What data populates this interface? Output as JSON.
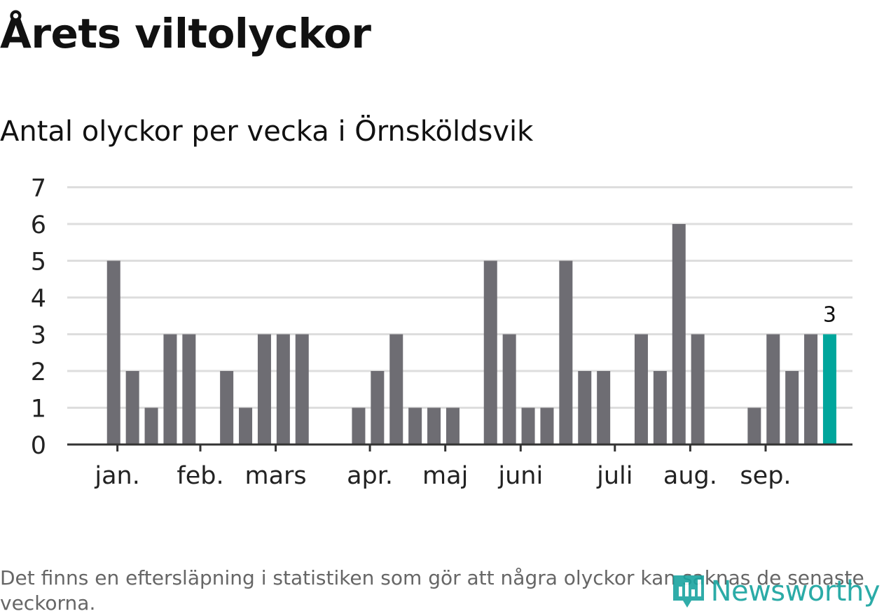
{
  "title": "Årets viltolyckor",
  "subtitle": "Antal olyckor per vecka i Örnsköldsvik",
  "note": "Det finns en eftersläpning i statistiken som gör att några olyckor kan saknas de senaste veckorna.",
  "brand": "Newsworthy",
  "colors": {
    "bar": "#6e6d73",
    "highlight": "#00a69c",
    "grid": "#dddddd",
    "axis": "#333333",
    "brand": "#1aa4a0"
  },
  "chart_data": {
    "type": "bar",
    "title": "Antal olyckor per vecka i Örnsköldsvik",
    "xlabel": "",
    "ylabel": "",
    "ylim": [
      0,
      7
    ],
    "yticks": [
      0,
      1,
      2,
      3,
      4,
      5,
      6,
      7
    ],
    "weeks": [
      1,
      2,
      3,
      4,
      5,
      6,
      7,
      8,
      9,
      10,
      11,
      12,
      13,
      14,
      15,
      16,
      17,
      18,
      19,
      20,
      21,
      22,
      23,
      24,
      25,
      26,
      27,
      28,
      29,
      30,
      31,
      32,
      33,
      34,
      35,
      36,
      37,
      38,
      39,
      40,
      41
    ],
    "values": [
      0,
      0,
      5,
      2,
      1,
      3,
      3,
      0,
      2,
      1,
      3,
      3,
      3,
      0,
      0,
      1,
      2,
      3,
      1,
      1,
      1,
      0,
      5,
      3,
      1,
      1,
      5,
      2,
      2,
      0,
      3,
      2,
      6,
      3,
      0,
      0,
      1,
      3,
      2,
      3,
      3
    ],
    "highlight_index": 40,
    "highlight_label": "3",
    "month_labels": [
      {
        "label": "jan.",
        "week": 3.2
      },
      {
        "label": "feb.",
        "week": 7.6
      },
      {
        "label": "mars",
        "week": 11.6
      },
      {
        "label": "apr.",
        "week": 16.6
      },
      {
        "label": "maj",
        "week": 20.6
      },
      {
        "label": "juni",
        "week": 24.6
      },
      {
        "label": "juli",
        "week": 29.6
      },
      {
        "label": "aug.",
        "week": 33.6
      },
      {
        "label": "sep.",
        "week": 37.6
      }
    ]
  }
}
